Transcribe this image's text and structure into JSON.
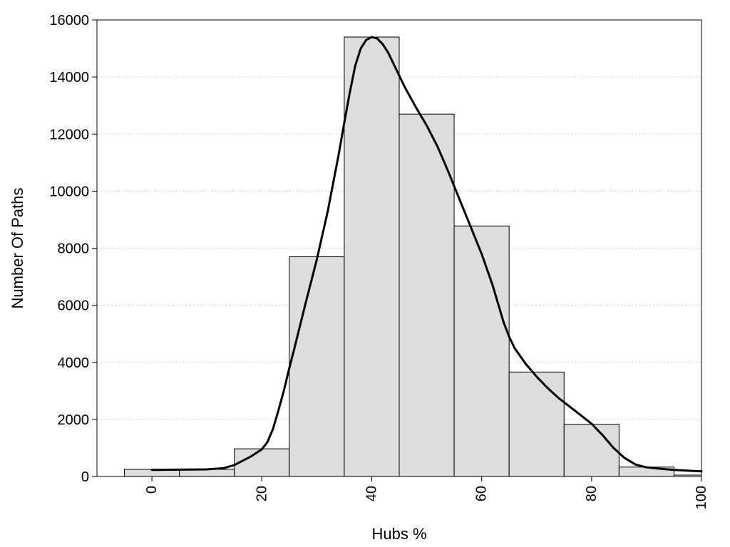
{
  "chart_data": {
    "type": "bar",
    "xlabel": "Hubs %",
    "ylabel": "Number Of Paths",
    "xlim": [
      -10,
      100
    ],
    "ylim": [
      0,
      16000
    ],
    "x_ticks": [
      0,
      20,
      40,
      60,
      80,
      100
    ],
    "x_tick_labels": [
      "0",
      "20",
      "40",
      "60",
      "80",
      "100"
    ],
    "y_ticks": [
      0,
      2000,
      4000,
      6000,
      8000,
      10000,
      12000,
      14000,
      16000
    ],
    "y_tick_labels": [
      "0",
      "2000",
      "4000",
      "6000",
      "8000",
      "10000",
      "12000",
      "14000",
      "16000"
    ],
    "grid": "horizontal dotted",
    "bin_width": 10,
    "bins": [
      {
        "center": 0,
        "value": 250
      },
      {
        "center": 10,
        "value": 250
      },
      {
        "center": 20,
        "value": 970
      },
      {
        "center": 30,
        "value": 7700
      },
      {
        "center": 40,
        "value": 15400
      },
      {
        "center": 50,
        "value": 12700
      },
      {
        "center": 60,
        "value": 8780
      },
      {
        "center": 70,
        "value": 3660
      },
      {
        "center": 80,
        "value": 1830
      },
      {
        "center": 90,
        "value": 330
      },
      {
        "center": 100,
        "value": 50
      }
    ],
    "density_curve": {
      "x": [
        0,
        5,
        10,
        13,
        15,
        18,
        20,
        21,
        22,
        23,
        24,
        25,
        26,
        28,
        30,
        32,
        34,
        35,
        36,
        37,
        38,
        39,
        40,
        41,
        42,
        43,
        44,
        45,
        46,
        48,
        50,
        52,
        54,
        56,
        58,
        60,
        62,
        64,
        65,
        66,
        68,
        70,
        72,
        74,
        76,
        78,
        80,
        82,
        84,
        86,
        88,
        90,
        92,
        95,
        97,
        100
      ],
      "y": [
        230,
        240,
        250,
        290,
        400,
        700,
        950,
        1200,
        1650,
        2300,
        3000,
        3800,
        4550,
        6100,
        7600,
        9300,
        11300,
        12400,
        13450,
        14400,
        15000,
        15300,
        15400,
        15350,
        15150,
        14850,
        14450,
        14050,
        13650,
        12950,
        12300,
        11550,
        10650,
        9700,
        8750,
        7800,
        6700,
        5400,
        4900,
        4500,
        3950,
        3500,
        3100,
        2750,
        2450,
        2150,
        1850,
        1450,
        1000,
        650,
        420,
        320,
        280,
        230,
        210,
        180
      ]
    }
  }
}
